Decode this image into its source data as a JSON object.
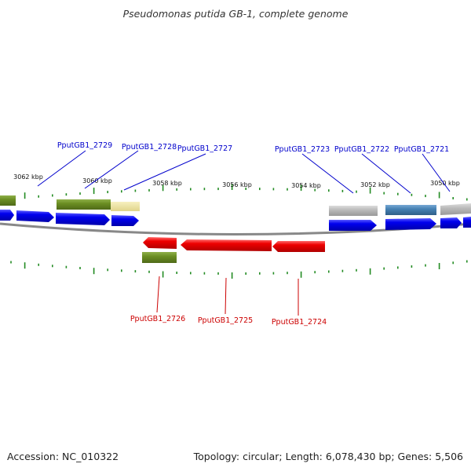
{
  "title": "Pseudomonas putida GB-1, complete genome",
  "footer": {
    "accession": "Accession: NC_010322",
    "summary": "Topology: circular; Length: 6,078,430 bp; Genes: 5,506"
  },
  "colors": {
    "forward_label": "#0000cc",
    "reverse_label": "#cc0000",
    "tick": "#228b22",
    "backbone": "#888888",
    "cds_blue": "#0000ee",
    "cds_red": "#ee0000",
    "feature_olive": "#6b8e23",
    "feature_khaki": "#ece3a0",
    "feature_gray": "#b8b8b8",
    "feature_steel": "#4682b4"
  },
  "scale_labels": [
    "3062 kbp",
    "3060 kbp",
    "3058 kbp",
    "3056 kbp",
    "3054 kbp",
    "3052 kbp",
    "3050 kbp"
  ],
  "forward_genes": [
    "PputGB1_2729",
    "PputGB1_2728",
    "PputGB1_2727",
    "PputGB1_2723",
    "PputGB1_2722",
    "PputGB1_2721"
  ],
  "reverse_genes": [
    "PputGB1_2726",
    "PputGB1_2725",
    "PputGB1_2724"
  ]
}
